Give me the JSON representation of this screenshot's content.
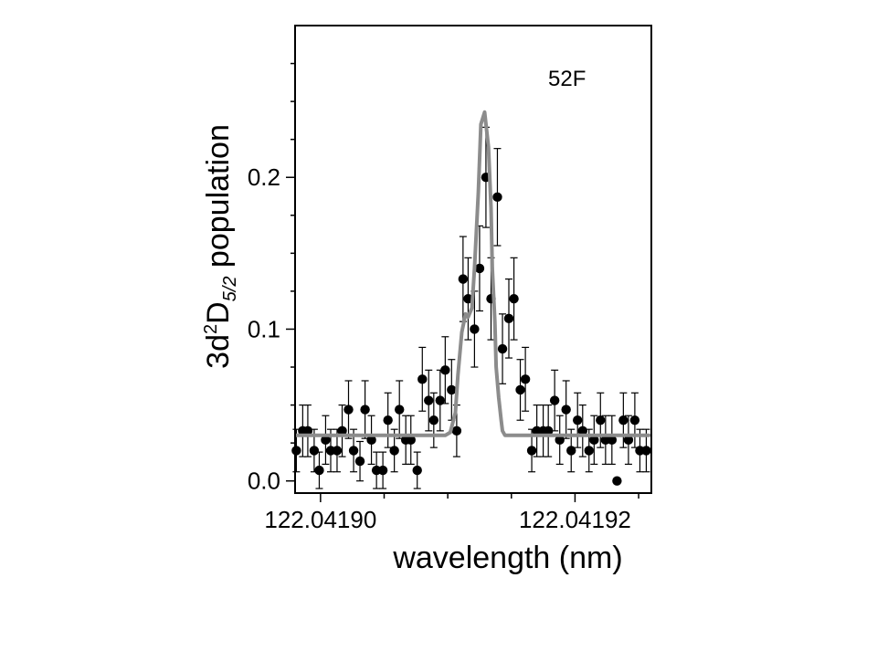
{
  "chart_data": {
    "type": "scatter",
    "annotation": "52F",
    "xlabel": "wavelength (nm)",
    "ylabel": {
      "prefix": "3d",
      "sup": "2",
      "mid": "D",
      "sub": "5/2",
      "suffix": " population"
    },
    "xlim": [
      122.041898,
      122.041926
    ],
    "ylim": [
      -0.008,
      0.3
    ],
    "x_ticks": [
      {
        "value": 122.0419,
        "label": "122.04190"
      },
      {
        "value": 122.04192,
        "label": "122.04192"
      }
    ],
    "y_ticks": [
      {
        "value": 0.0,
        "label": "0.0"
      },
      {
        "value": 0.1,
        "label": "0.1"
      },
      {
        "value": 0.2,
        "label": "0.2"
      }
    ],
    "grid": false,
    "colors": {
      "points": "#000000",
      "fit": "#8c8c8c",
      "axes": "#000000"
    },
    "series": [
      {
        "kind": "measured",
        "x": [
          122.0418981,
          122.0418986,
          122.041899,
          122.0418995,
          122.0418999,
          122.0419004,
          122.0419008,
          122.0419013,
          122.0419017,
          122.0419022,
          122.0419026,
          122.0419031,
          122.0419035,
          122.041904,
          122.0419044,
          122.0419049,
          122.0419053,
          122.0419058,
          122.0419062,
          122.0419067,
          122.0419071,
          122.0419076,
          122.041908,
          122.0419085,
          122.0419089,
          122.0419094,
          122.0419098,
          122.0419103,
          122.0419107,
          122.0419112,
          122.0419116,
          122.0419121,
          122.0419125,
          122.041913,
          122.0419134,
          122.0419139,
          122.0419143,
          122.0419148,
          122.0419152,
          122.0419157,
          122.0419161,
          122.0419166,
          122.041917,
          122.0419175,
          122.0419179,
          122.0419184,
          122.0419188,
          122.0419193,
          122.0419197,
          122.0419202,
          122.0419206,
          122.0419211,
          122.0419215,
          122.041922,
          122.0419224,
          122.0419229,
          122.0419233,
          122.0419238,
          122.0419242,
          122.0419247,
          122.0419251,
          122.0419256
        ],
        "y": [
          0.02,
          0.033,
          0.033,
          0.02,
          0.007,
          0.027,
          0.02,
          0.02,
          0.033,
          0.047,
          0.02,
          0.013,
          0.047,
          0.027,
          0.007,
          0.007,
          0.04,
          0.02,
          0.047,
          0.027,
          0.027,
          0.007,
          0.067,
          0.053,
          0.04,
          0.053,
          0.073,
          0.06,
          0.033,
          0.133,
          0.12,
          0.1,
          0.14,
          0.2,
          0.12,
          0.187,
          0.087,
          0.107,
          0.12,
          0.06,
          0.067,
          0.02,
          0.033,
          0.033,
          0.033,
          0.053,
          0.027,
          0.047,
          0.02,
          0.04,
          0.033,
          0.02,
          0.027,
          0.04,
          0.027,
          0.027,
          0.0,
          0.04,
          0.027,
          0.04,
          0.02,
          0.02
        ],
        "err": [
          0.014,
          0.017,
          0.017,
          0.014,
          0.012,
          0.016,
          0.014,
          0.014,
          0.017,
          0.019,
          0.014,
          0.013,
          0.019,
          0.016,
          0.012,
          0.012,
          0.018,
          0.014,
          0.019,
          0.016,
          0.016,
          0.012,
          0.021,
          0.02,
          0.018,
          0.02,
          0.022,
          0.02,
          0.017,
          0.028,
          0.027,
          0.025,
          0.028,
          0.033,
          0.027,
          0.032,
          0.023,
          0.026,
          0.027,
          0.02,
          0.021,
          0.014,
          0.017,
          0.017,
          0.017,
          0.02,
          0.016,
          0.019,
          0.014,
          0.018,
          0.017,
          0.014,
          0.016,
          0.018,
          0.016,
          0.016,
          0.0,
          0.018,
          0.016,
          0.018,
          0.014,
          0.014
        ]
      },
      {
        "kind": "fit",
        "x": [
          122.041898,
          122.0419003,
          122.0419027,
          122.0419052,
          122.0419075,
          122.0419098,
          122.0419102,
          122.0419106,
          122.0419108,
          122.0419111,
          122.0419114,
          122.0419116,
          122.0419119,
          122.0419121,
          122.0419124,
          122.0419126,
          122.0419129,
          122.0419132,
          122.0419134,
          122.0419135,
          122.0419137,
          122.0419138,
          122.041914,
          122.0419142,
          122.0419143,
          122.0419145,
          122.0419148,
          122.0419151,
          122.0419155,
          122.041916,
          122.041918,
          122.0419205,
          122.041923,
          122.0419258
        ],
        "y": [
          0.03,
          0.03,
          0.03,
          0.03,
          0.03,
          0.03,
          0.032,
          0.045,
          0.07,
          0.098,
          0.11,
          0.108,
          0.114,
          0.14,
          0.19,
          0.235,
          0.243,
          0.22,
          0.18,
          0.14,
          0.105,
          0.075,
          0.055,
          0.04,
          0.033,
          0.03,
          0.03,
          0.03,
          0.03,
          0.03,
          0.03,
          0.03,
          0.03,
          0.03
        ]
      }
    ]
  }
}
